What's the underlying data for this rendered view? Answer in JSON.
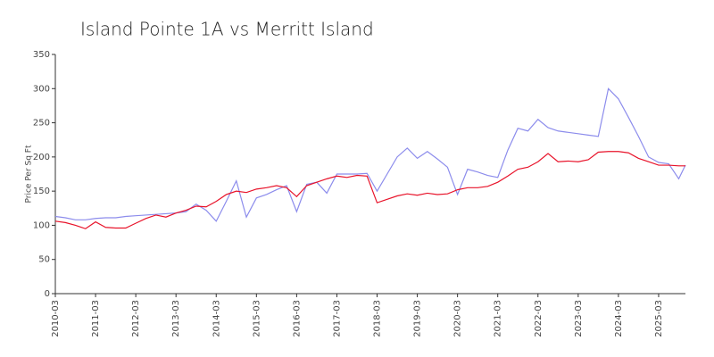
{
  "chart_data": {
    "type": "line",
    "title": "Island Pointe 1A vs Merritt Island",
    "y_label": "Price Per Sq Ft",
    "x": [
      "2010-03",
      "2010-06",
      "2010-09",
      "2010-12",
      "2011-03",
      "2011-06",
      "2011-09",
      "2011-12",
      "2012-03",
      "2012-06",
      "2012-09",
      "2012-12",
      "2013-03",
      "2013-06",
      "2013-09",
      "2013-12",
      "2014-03",
      "2014-06",
      "2014-09",
      "2014-12",
      "2015-03",
      "2015-06",
      "2015-09",
      "2015-12",
      "2016-03",
      "2016-06",
      "2016-09",
      "2016-12",
      "2017-03",
      "2017-06",
      "2017-09",
      "2017-12",
      "2018-03",
      "2018-06",
      "2018-09",
      "2018-12",
      "2019-03",
      "2019-06",
      "2019-09",
      "2019-12",
      "2020-03",
      "2020-06",
      "2020-09",
      "2020-12",
      "2021-03",
      "2021-06",
      "2021-09",
      "2021-12",
      "2022-03",
      "2022-06",
      "2022-09",
      "2022-12",
      "2023-03",
      "2023-06",
      "2023-09",
      "2023-12",
      "2024-03",
      "2024-06",
      "2024-09",
      "2024-12",
      "2025-03",
      "2025-06",
      "2025-09",
      "2025-11"
    ],
    "series": [
      {
        "color": "#8c8cec",
        "values": [
          113,
          111,
          108,
          108,
          110,
          111,
          111,
          113,
          114,
          115,
          116,
          117,
          118,
          120,
          131,
          122,
          106,
          135,
          165,
          112,
          140,
          145,
          152,
          158,
          120,
          160,
          163,
          147,
          175,
          175,
          175,
          176,
          150,
          175,
          200,
          213,
          198,
          208,
          197,
          185,
          145,
          182,
          178,
          173,
          170,
          210,
          242,
          238,
          255,
          243,
          238,
          236,
          234,
          232,
          230,
          300,
          285,
          258,
          230,
          200,
          192,
          190,
          168,
          188
        ]
      },
      {
        "color": "#e8132a",
        "values": [
          106,
          104,
          100,
          95,
          105,
          97,
          96,
          96,
          103,
          110,
          115,
          112,
          118,
          122,
          128,
          127,
          135,
          145,
          150,
          148,
          153,
          155,
          158,
          155,
          142,
          158,
          163,
          168,
          172,
          170,
          173,
          172,
          133,
          138,
          143,
          146,
          144,
          147,
          145,
          146,
          152,
          155,
          155,
          157,
          163,
          172,
          182,
          185,
          193,
          205,
          193,
          194,
          193,
          196,
          207,
          208,
          208,
          206,
          198,
          193,
          188,
          188,
          187,
          187
        ]
      }
    ],
    "xlim": [
      "2010-03",
      "2025-11"
    ],
    "xticks": [
      "2010-03",
      "2011-03",
      "2012-03",
      "2013-03",
      "2014-03",
      "2015-03",
      "2016-03",
      "2017-03",
      "2018-03",
      "2019-03",
      "2020-03",
      "2021-03",
      "2022-03",
      "2023-03",
      "2024-03",
      "2025-03"
    ],
    "ylim": [
      0,
      350
    ],
    "yticks": [
      0,
      50,
      100,
      150,
      200,
      250,
      300,
      350
    ]
  }
}
